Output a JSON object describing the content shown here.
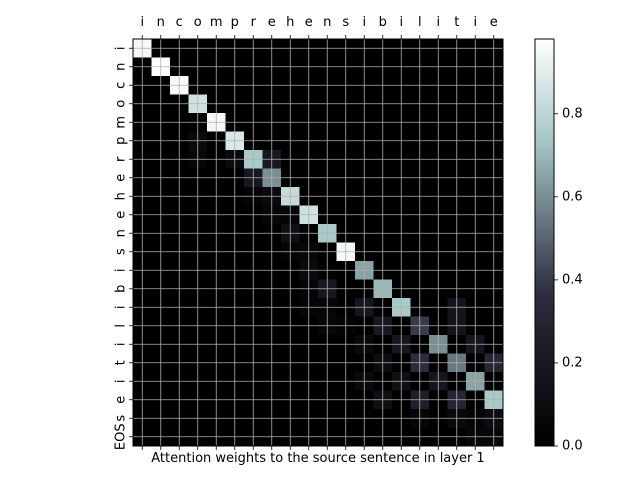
{
  "chart_data": {
    "type": "heatmap",
    "x_tokens": [
      "i",
      "n",
      "c",
      "o",
      "m",
      "p",
      "r",
      "e",
      "h",
      "e",
      "n",
      "s",
      "i",
      "b",
      "i",
      "l",
      "i",
      "t",
      "i",
      "e"
    ],
    "y_tokens": [
      "i",
      "n",
      "c",
      "o",
      "m",
      "p",
      "r",
      "e",
      "h",
      "e",
      "n",
      "s",
      "i",
      "b",
      "i",
      "l",
      "i",
      "t",
      "i",
      "e",
      "s",
      "EOS"
    ],
    "xlabel": "Attention weights to the source sentence in layer 1",
    "colormap": "bone",
    "colorbar": {
      "min": 0.0,
      "max": 0.98,
      "ticks": [
        0.0,
        0.2,
        0.4,
        0.6,
        0.8
      ],
      "tick_labels": [
        "0.0",
        "0.2",
        "0.4",
        "0.6",
        "0.8"
      ]
    },
    "grid": true,
    "values": [
      [
        0.95,
        0,
        0,
        0,
        0,
        0,
        0,
        0,
        0,
        0,
        0,
        0,
        0,
        0,
        0,
        0,
        0,
        0,
        0,
        0
      ],
      [
        0,
        0.98,
        0,
        0,
        0,
        0,
        0,
        0,
        0,
        0,
        0,
        0,
        0,
        0,
        0,
        0,
        0,
        0,
        0,
        0
      ],
      [
        0,
        0,
        0.96,
        0,
        0,
        0,
        0,
        0,
        0,
        0,
        0,
        0,
        0,
        0,
        0,
        0,
        0,
        0,
        0,
        0
      ],
      [
        0,
        0,
        0,
        0.85,
        0,
        0,
        0,
        0,
        0,
        0,
        0,
        0,
        0,
        0,
        0,
        0,
        0,
        0,
        0,
        0
      ],
      [
        0,
        0,
        0,
        0.02,
        0.95,
        0,
        0,
        0,
        0,
        0,
        0,
        0,
        0,
        0,
        0,
        0,
        0,
        0,
        0,
        0
      ],
      [
        0,
        0,
        0,
        0.08,
        0,
        0.88,
        0,
        0,
        0,
        0,
        0,
        0,
        0,
        0,
        0,
        0,
        0,
        0,
        0,
        0
      ],
      [
        0,
        0,
        0,
        0.06,
        0,
        0.08,
        0.75,
        0.2,
        0,
        0,
        0,
        0,
        0,
        0,
        0,
        0,
        0,
        0,
        0,
        0
      ],
      [
        0,
        0,
        0,
        0,
        0,
        0,
        0.2,
        0.6,
        0,
        0,
        0,
        0,
        0,
        0,
        0,
        0,
        0,
        0,
        0,
        0
      ],
      [
        0,
        0,
        0,
        0,
        0,
        0,
        0.04,
        0.08,
        0.82,
        0,
        0,
        0,
        0,
        0,
        0,
        0,
        0,
        0,
        0,
        0
      ],
      [
        0,
        0,
        0,
        0,
        0,
        0,
        0,
        0.06,
        0.04,
        0.85,
        0,
        0,
        0,
        0,
        0,
        0,
        0,
        0,
        0,
        0
      ],
      [
        0,
        0,
        0,
        0,
        0,
        0,
        0,
        0,
        0.12,
        0.02,
        0.75,
        0,
        0,
        0,
        0,
        0,
        0,
        0,
        0,
        0
      ],
      [
        0,
        0,
        0,
        0,
        0,
        0,
        0,
        0,
        0.04,
        0.06,
        0,
        0.95,
        0,
        0,
        0,
        0,
        0,
        0,
        0,
        0
      ],
      [
        0,
        0,
        0,
        0,
        0,
        0,
        0,
        0,
        0,
        0.08,
        0.02,
        0,
        0.65,
        0,
        0,
        0,
        0,
        0,
        0,
        0
      ],
      [
        0,
        0,
        0,
        0,
        0,
        0,
        0,
        0,
        0,
        0.04,
        0.2,
        0,
        0,
        0.7,
        0,
        0,
        0,
        0,
        0,
        0
      ],
      [
        0,
        0,
        0,
        0,
        0,
        0,
        0,
        0,
        0,
        0.04,
        0.04,
        0,
        0.18,
        0,
        0.75,
        0,
        0,
        0.16,
        0,
        0
      ],
      [
        0,
        0,
        0,
        0,
        0,
        0,
        0,
        0,
        0,
        0,
        0.06,
        0.03,
        0,
        0.2,
        0,
        0.4,
        0,
        0.16,
        0,
        0
      ],
      [
        0,
        0,
        0,
        0,
        0,
        0,
        0,
        0,
        0,
        0,
        0,
        0,
        0.08,
        0,
        0.18,
        0,
        0.6,
        0,
        0.18,
        0
      ],
      [
        0,
        0,
        0,
        0,
        0,
        0,
        0,
        0,
        0,
        0,
        0,
        0,
        0,
        0.1,
        0,
        0.35,
        0,
        0.55,
        0,
        0.3
      ],
      [
        0,
        0,
        0,
        0,
        0,
        0,
        0,
        0,
        0,
        0,
        0,
        0,
        0.08,
        0,
        0.12,
        0,
        0.18,
        0,
        0.65,
        0
      ],
      [
        0,
        0,
        0,
        0,
        0,
        0,
        0,
        0,
        0,
        0,
        0,
        0,
        0,
        0.12,
        0,
        0.25,
        0,
        0.3,
        0,
        0.75
      ],
      [
        0,
        0,
        0,
        0,
        0,
        0,
        0,
        0,
        0,
        0,
        0,
        0,
        0,
        0,
        0,
        0.05,
        0,
        0.08,
        0.04,
        0.1
      ],
      [
        0,
        0,
        0,
        0,
        0,
        0,
        0,
        0,
        0,
        0,
        0,
        0,
        0,
        0,
        0,
        0,
        0,
        0,
        0.06,
        0.06
      ]
    ]
  }
}
